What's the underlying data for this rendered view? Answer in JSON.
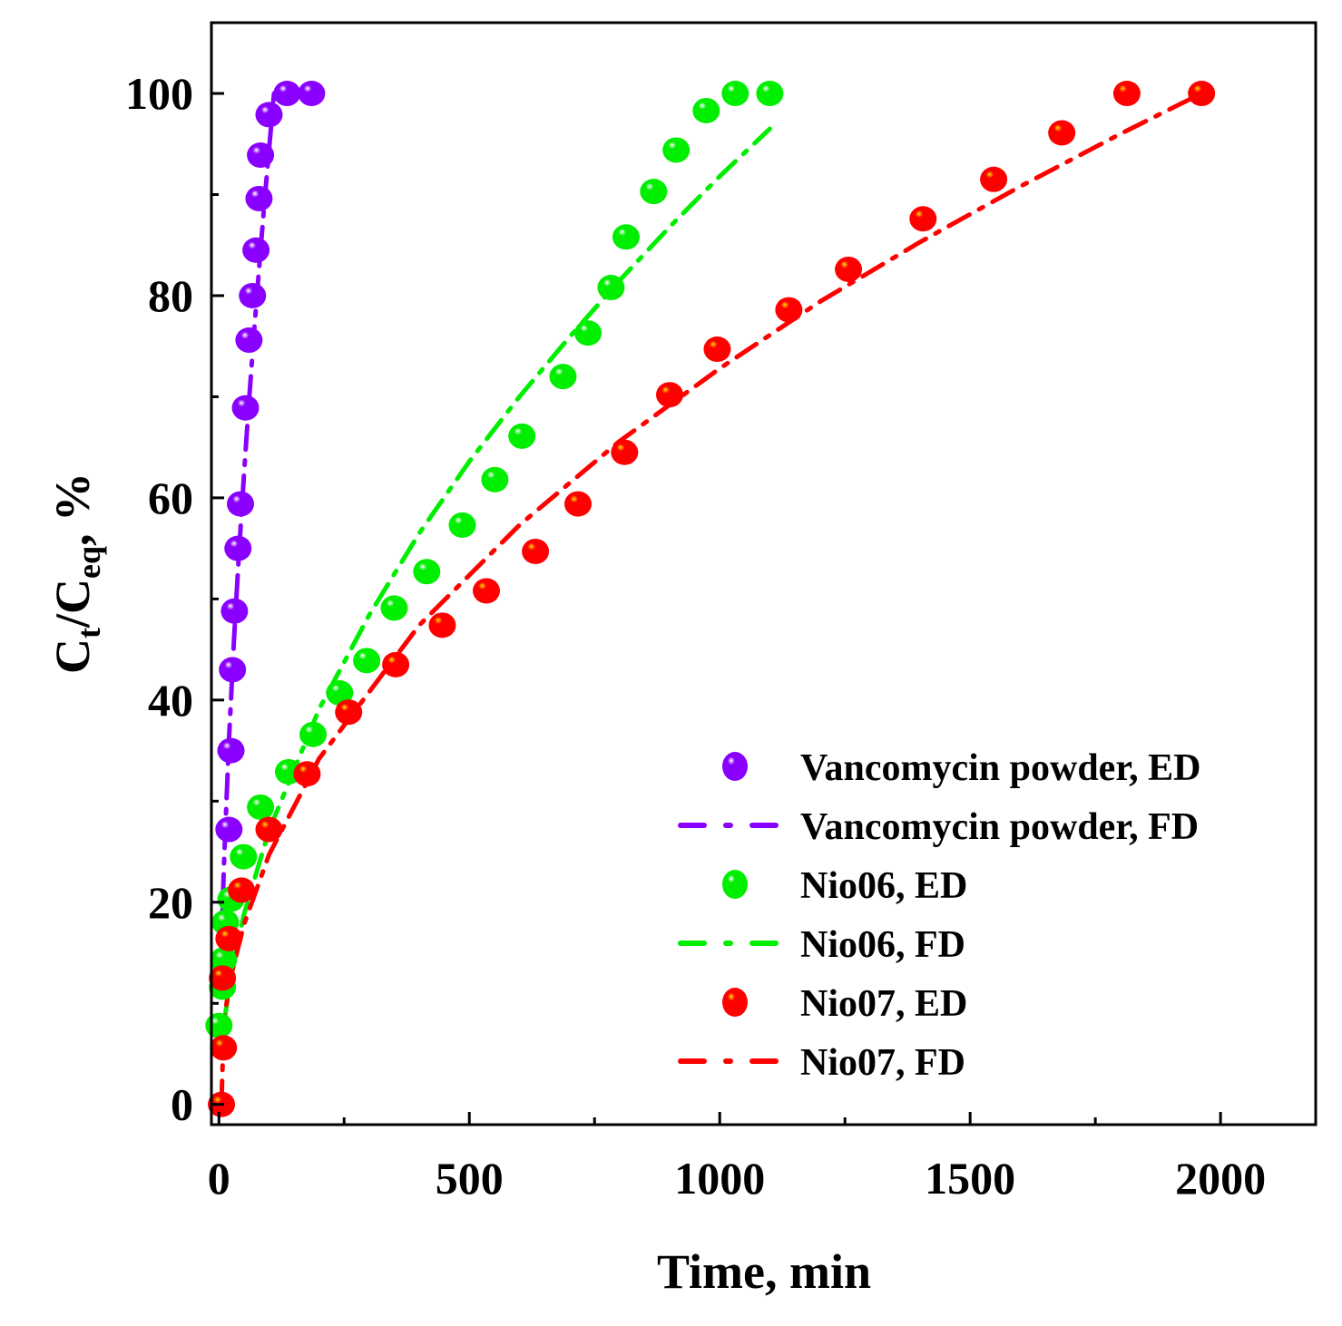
{
  "chart_data": {
    "type": "scatter",
    "title": "",
    "xlabel": "Time, min",
    "ylabel": {
      "main": "C",
      "sub1": "t",
      "slash": "/C",
      "sub2": "eq",
      "suffix": ", %"
    },
    "xlim": [
      -15,
      2190
    ],
    "ylim": [
      -2,
      107
    ],
    "xticks": [
      0,
      500,
      1000,
      1500,
      2000
    ],
    "yticks": [
      0,
      20,
      40,
      60,
      80,
      100
    ],
    "grid": false,
    "legend_position": "bottom-right",
    "colors": {
      "vancomycin": "#8a00ff",
      "nio06": "#00ee00",
      "nio07": "#ff0000"
    },
    "series": [
      {
        "name": "Vancomycin powder, ED",
        "kind": "markers",
        "color": "#8a00ff",
        "highlight": "#ffffff",
        "x": [
          20,
          24,
          27,
          31,
          38,
          43,
          53,
          60,
          67,
          74,
          80,
          83,
          100,
          136,
          185
        ],
        "y": [
          27.2,
          35,
          43,
          48.8,
          55,
          59.4,
          68.9,
          75.6,
          80,
          84.5,
          89.6,
          93.9,
          97.9,
          100,
          100
        ]
      },
      {
        "name": "Vancomycin powder, FD",
        "kind": "line",
        "color": "#8a00ff",
        "x": [
          5,
          10,
          20,
          30,
          40,
          50,
          60,
          70,
          80,
          90,
          100,
          110
        ],
        "y": [
          15.5,
          23.7,
          36,
          45.9,
          54.5,
          62.3,
          69.5,
          76.3,
          82.6,
          88.7,
          94.4,
          100
        ]
      },
      {
        "name": "Nio06, ED",
        "kind": "markers",
        "color": "#00ee00",
        "highlight": "#ffffff",
        "x": [
          0,
          7,
          9,
          13,
          24,
          49,
          83,
          139,
          188,
          241,
          295,
          350,
          415,
          486,
          551,
          605,
          687,
          737,
          783,
          813,
          868,
          913,
          973,
          1031,
          1100
        ],
        "y": [
          7.8,
          11.6,
          14.3,
          18,
          20.3,
          24.5,
          29.4,
          32.9,
          36.6,
          40.7,
          43.9,
          49.1,
          52.7,
          57.3,
          61.8,
          66.1,
          72,
          76.3,
          80.8,
          85.8,
          90.3,
          94.4,
          98.3,
          100,
          100
        ]
      },
      {
        "name": "Nio06, FD",
        "kind": "line",
        "color": "#00ee00",
        "x": [
          10,
          25,
          50,
          100,
          200,
          300,
          400,
          500,
          600,
          700,
          800,
          900,
          1000,
          1100
        ],
        "y": [
          8.0,
          13.0,
          18.8,
          27.1,
          39.1,
          48.4,
          56.5,
          63.6,
          70.0,
          75.9,
          81.5,
          86.8,
          91.8,
          96.5
        ]
      },
      {
        "name": "Nio07, ED",
        "kind": "markers",
        "color": "#ff0000",
        "highlight": "#ffe000",
        "x": [
          5,
          9,
          7,
          20,
          45,
          100,
          176,
          259,
          353,
          446,
          534,
          632,
          717,
          810,
          900,
          995,
          1138,
          1257,
          1406,
          1547,
          1683,
          1813,
          1962
        ],
        "y": [
          0,
          5.6,
          12.5,
          16.4,
          21.2,
          27.2,
          32.7,
          38.8,
          43.5,
          47.4,
          50.8,
          54.7,
          59.4,
          64.5,
          70.2,
          74.7,
          78.6,
          82.6,
          87.6,
          91.5,
          96.1,
          100,
          100
        ]
      },
      {
        "name": "Nio07, FD",
        "kind": "line",
        "color": "#ff0000",
        "x": [
          5,
          10,
          25,
          50,
          100,
          200,
          400,
          600,
          800,
          1000,
          1200,
          1400,
          1600,
          1800,
          1962
        ],
        "y": [
          0,
          8.4,
          12.9,
          17.8,
          24.7,
          34.2,
          47.4,
          57.3,
          65.6,
          72.8,
          79.4,
          85.3,
          90.8,
          96.0,
          100
        ]
      }
    ]
  }
}
